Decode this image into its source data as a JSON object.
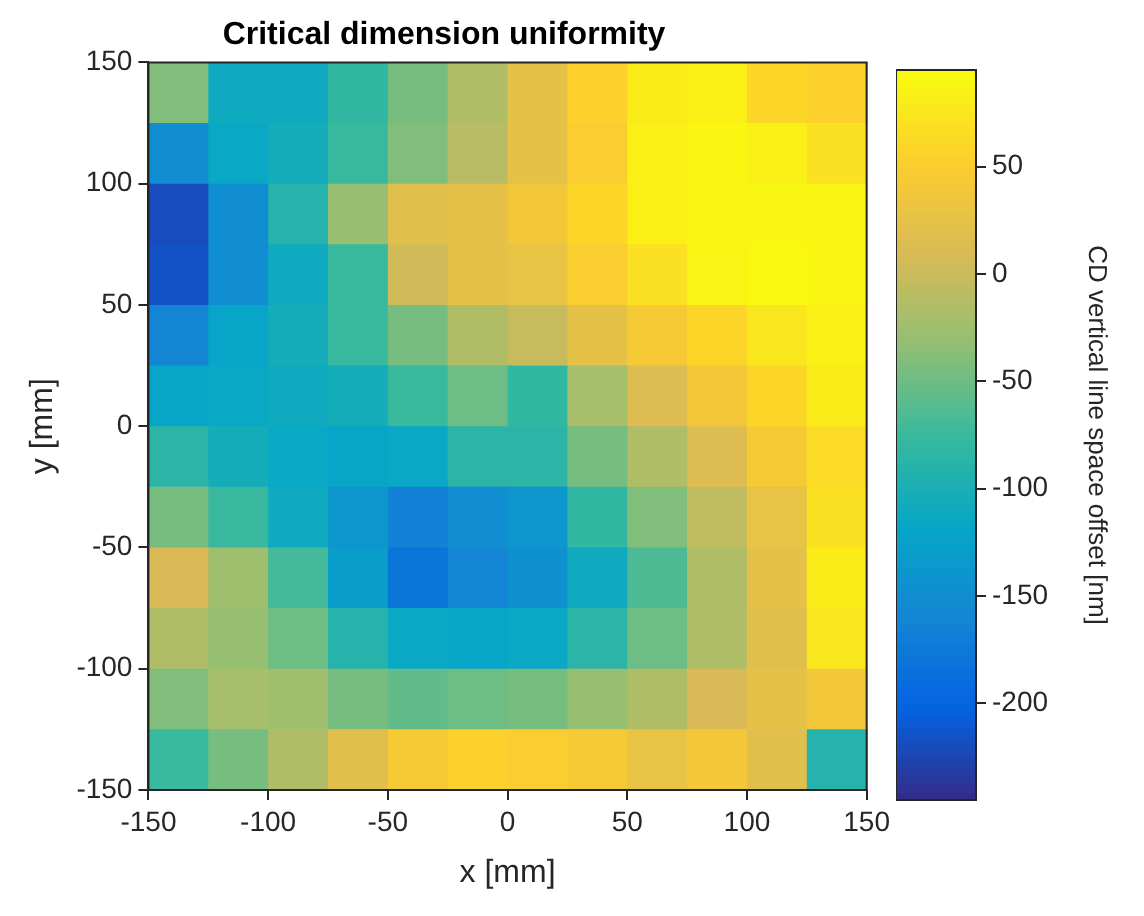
{
  "chart_data": {
    "type": "heatmap",
    "title": "Critical dimension uniformity",
    "xlabel": "x [mm]",
    "ylabel": "y [mm]",
    "clabel": "CD vertical line space offset [nm]",
    "xlim": [
      -150,
      150
    ],
    "ylim": [
      -150,
      150
    ],
    "xticks": [
      -150,
      -100,
      -50,
      0,
      50,
      100,
      150
    ],
    "yticks": [
      -150,
      -100,
      -50,
      0,
      50,
      100,
      150
    ],
    "clim": [
      -245,
      95
    ],
    "cticks": [
      -200,
      -150,
      -100,
      -50,
      0,
      50
    ],
    "grid": false,
    "cells": [
      [
        -40,
        -110,
        -110,
        -80,
        -45,
        -15,
        25,
        55,
        80,
        85,
        60,
        55
      ],
      [
        -150,
        -115,
        -105,
        -75,
        -40,
        -10,
        25,
        50,
        85,
        90,
        85,
        70
      ],
      [
        -220,
        -150,
        -90,
        -30,
        20,
        25,
        40,
        60,
        85,
        90,
        90,
        90
      ],
      [
        -215,
        -150,
        -110,
        -75,
        5,
        25,
        30,
        50,
        70,
        88,
        92,
        90
      ],
      [
        -160,
        -120,
        -105,
        -75,
        -45,
        -15,
        0,
        25,
        45,
        60,
        75,
        85
      ],
      [
        -120,
        -115,
        -110,
        -105,
        -75,
        -50,
        -80,
        -20,
        15,
        40,
        60,
        80
      ],
      [
        -85,
        -105,
        -115,
        -120,
        -115,
        -85,
        -85,
        -45,
        -15,
        15,
        45,
        65
      ],
      [
        -45,
        -75,
        -110,
        -140,
        -165,
        -150,
        -140,
        -80,
        -40,
        -5,
        30,
        70
      ],
      [
        10,
        -25,
        -70,
        -130,
        -180,
        -160,
        -145,
        -110,
        -65,
        -15,
        25,
        80
      ],
      [
        -15,
        -30,
        -50,
        -90,
        -115,
        -120,
        -115,
        -85,
        -50,
        -15,
        20,
        75
      ],
      [
        -40,
        -20,
        -25,
        -45,
        -55,
        -50,
        -45,
        -30,
        -15,
        10,
        25,
        40
      ],
      [
        -75,
        -45,
        -15,
        20,
        45,
        55,
        50,
        45,
        30,
        40,
        20,
        -90
      ]
    ]
  }
}
